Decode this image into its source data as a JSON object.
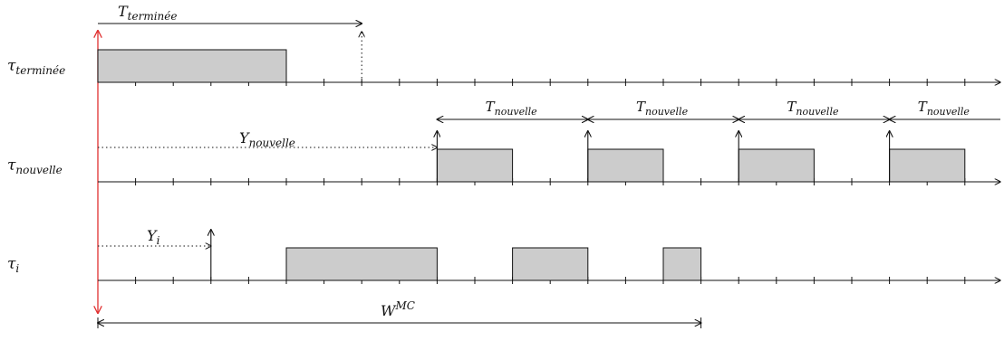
{
  "colors": {
    "axis": "#111111",
    "block_fill": "#cccccc",
    "block_stroke": "#111111",
    "marker_red": "#e03030"
  },
  "tasks": [
    {
      "key": "terminee",
      "label": {
        "base": "τ",
        "sub": "terminée"
      },
      "blocks": [
        [
          0,
          5
        ]
      ],
      "releases": [],
      "dotted_release": 7,
      "period_label": {
        "base": "T",
        "sub": "terminée"
      },
      "offset_label": null
    },
    {
      "key": "nouvelle",
      "label": {
        "base": "τ",
        "sub": "nouvelle"
      },
      "blocks": [
        [
          9,
          11
        ],
        [
          13,
          15
        ],
        [
          17,
          19
        ],
        [
          21,
          23
        ]
      ],
      "releases": [
        9,
        13,
        17,
        21
      ],
      "dotted_release": null,
      "period_label": {
        "base": "T",
        "sub": "nouvelle"
      },
      "offset_label": {
        "base": "Y",
        "sub": "nouvelle"
      }
    },
    {
      "key": "i",
      "label": {
        "base": "τ",
        "sub": "i"
      },
      "blocks": [
        [
          5,
          9
        ],
        [
          11,
          13
        ],
        [
          15,
          16
        ]
      ],
      "releases": [
        3
      ],
      "dotted_release": null,
      "period_label": null,
      "offset_label": {
        "base": "Y",
        "sub": "i"
      }
    }
  ],
  "wmc": {
    "base": "W",
    "sup": "MC",
    "end": 16
  },
  "axis_ticks": 24
}
